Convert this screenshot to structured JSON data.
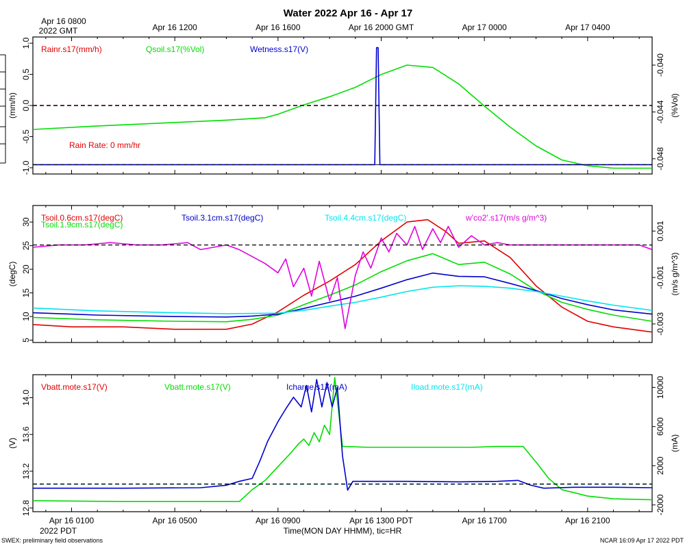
{
  "colors": {
    "red": "#e00000",
    "green": "#00dd00",
    "blue": "#0000cc",
    "cyan": "#00e5ee",
    "magenta": "#e000e0",
    "black": "#000000"
  },
  "title": "Water 2022 Apr 16 - Apr 17",
  "top_axis": {
    "first_label_line1": "Apr 16 0800",
    "first_label_line2": "2022 GMT",
    "labels": [
      "Apr 16 1200",
      "Apr 16 1600",
      "Apr 16 2000 GMT",
      "Apr 17 0000",
      "Apr 17 0400"
    ]
  },
  "bottom_axis": {
    "labels": [
      "Apr 16 0100",
      "Apr 16 0500",
      "Apr 16 0900",
      "Apr 16 1300 PDT",
      "Apr 16 1700",
      "Apr 16 2100"
    ],
    "year_label": "2022 PDT",
    "xlabel": "Time(MON DAY HHMM), tic=HR"
  },
  "footer": {
    "left": "SWEX: preliminary field observations",
    "right": "NCAR 16:09 Apr 17 2022 PDT"
  },
  "chart_data": [
    {
      "type": "line",
      "panel": "water",
      "x_unit": "hours since Apr 16 0000 PDT",
      "xlim": [
        -0.5,
        23.5
      ],
      "ylim": [
        -1.1,
        1.1
      ],
      "ylabel": "(mm/h)",
      "yticks": [
        "-1.0",
        "-0.5",
        "0.0",
        "0.5",
        "1.0"
      ],
      "y2lim": [
        -0.0493,
        -0.0376
      ],
      "y2label": "(%Vol)",
      "y2ticks": [
        "-0.048",
        "-0.044",
        "-0.040"
      ],
      "annotation": "Rain Rate: 0 mm/hr",
      "legend": [
        "Rainr.s17(mm/h)",
        "Qsoil.s17(%Vol)",
        "Wetness.s17(V)"
      ],
      "series": [
        {
          "name": "Rainr.s17(mm/h)",
          "axis": "left",
          "color": "red",
          "dashed": true,
          "x": [
            -0.5,
            23.5
          ],
          "y": [
            0,
            0
          ]
        },
        {
          "name": "Qsoil.s17(%Vol)",
          "axis": "right",
          "color": "green",
          "x": [
            -0.5,
            2,
            5,
            7,
            8.5,
            9,
            10,
            11,
            12,
            13,
            14,
            15,
            16,
            17,
            18,
            19,
            20,
            21,
            22,
            23.5
          ],
          "y": [
            -0.0455,
            -0.0452,
            -0.0449,
            -0.0447,
            -0.0445,
            -0.0442,
            -0.0434,
            -0.0427,
            -0.0419,
            -0.0408,
            -0.04,
            -0.0402,
            -0.0416,
            -0.0435,
            -0.0453,
            -0.0469,
            -0.0481,
            -0.0486,
            -0.0488,
            -0.0488
          ]
        },
        {
          "name": "Wetness.s17(V)",
          "axis": "left",
          "color": "blue",
          "x": [
            -0.5,
            12.75,
            12.82,
            12.88,
            12.95,
            23.5
          ],
          "y": [
            -0.95,
            -0.95,
            0.93,
            0.93,
            -0.95,
            -0.95
          ]
        }
      ]
    },
    {
      "type": "line",
      "panel": "soil-temperature",
      "x_unit": "hours since Apr 16 0000 PDT",
      "xlim": [
        -0.5,
        23.5
      ],
      "ylim": [
        4.5,
        33.5
      ],
      "ylabel": "(degC)",
      "yticks": [
        "5",
        "10",
        "15",
        "20",
        "25",
        "30"
      ],
      "y2lim": [
        -0.0038,
        0.0021
      ],
      "y2label": "(m/s g/m^3)",
      "y2ticks": [
        "-0.003",
        "-0.001",
        "0.001"
      ],
      "legend": [
        "Tsoil.0.6cm.s17(degC)",
        "Tsoil.1.9cm.s17(degC)",
        "Tsoil.3.1cm.s17(degC)",
        "Tsoil.4.4cm.s17(degC)",
        "w'co2'.s17(m/s g/m^3)"
      ],
      "series": [
        {
          "name": "Tsoil.0.6cm.s17(degC)",
          "axis": "left",
          "color": "red",
          "x": [
            -0.5,
            1,
            3,
            5,
            7,
            8,
            9,
            10,
            11,
            12,
            13,
            14,
            14.8,
            15.5,
            16,
            17,
            18,
            19,
            20,
            21,
            22,
            23.5
          ],
          "y": [
            8.3,
            7.8,
            7.8,
            7.3,
            7.3,
            8.4,
            11.0,
            14.5,
            17.5,
            21.0,
            26.0,
            30.0,
            30.5,
            28.0,
            25.5,
            26.0,
            22.5,
            16.5,
            12.0,
            9.0,
            7.8,
            6.7
          ]
        },
        {
          "name": "Tsoil.1.9cm.s17(degC)",
          "axis": "left",
          "color": "green",
          "x": [
            -0.5,
            2,
            5,
            7,
            8,
            9,
            10,
            11,
            12,
            13,
            14,
            15,
            16,
            17,
            18,
            19,
            20,
            21,
            22,
            23.5
          ],
          "y": [
            9.8,
            9.3,
            9.0,
            8.9,
            9.4,
            10.3,
            12.5,
            14.5,
            16.7,
            19.5,
            21.8,
            23.3,
            21.0,
            21.5,
            19.0,
            15.5,
            13.0,
            11.5,
            10.3,
            9.0
          ]
        },
        {
          "name": "Tsoil.3.1cm.s17(degC)",
          "axis": "left",
          "color": "blue",
          "x": [
            -0.5,
            2,
            5,
            7,
            8,
            9,
            10,
            11,
            12,
            13,
            14,
            15,
            16,
            17,
            18,
            19,
            20,
            21,
            22,
            23.5
          ],
          "y": [
            10.8,
            10.3,
            10.0,
            9.9,
            10.1,
            10.5,
            11.7,
            13.0,
            14.3,
            16.0,
            17.8,
            19.2,
            18.5,
            18.4,
            17.0,
            15.5,
            13.8,
            12.5,
            11.4,
            10.5
          ]
        },
        {
          "name": "Tsoil.4.4cm.s17(degC)",
          "axis": "left",
          "color": "cyan",
          "x": [
            -0.5,
            2,
            5,
            7,
            9,
            10,
            11,
            12,
            13,
            14,
            15,
            16,
            17,
            18,
            19,
            20,
            21,
            22,
            23.5
          ],
          "y": [
            11.8,
            11.2,
            10.8,
            10.6,
            10.7,
            11.3,
            12.2,
            13.0,
            14.1,
            15.3,
            16.2,
            16.5,
            16.4,
            16.0,
            15.3,
            14.3,
            13.3,
            12.4,
            11.3
          ]
        },
        {
          "name": "w'co2'.s17(m/s g/m^3)",
          "axis": "right",
          "color": "magenta",
          "x": [
            -0.5,
            0.5,
            1.5,
            2.5,
            3.5,
            4.5,
            5.5,
            6.0,
            6.5,
            7.0,
            7.5,
            8.0,
            8.5,
            9.0,
            9.3,
            9.6,
            10.0,
            10.3,
            10.6,
            11.0,
            11.3,
            11.6,
            12.0,
            12.3,
            12.6,
            13.0,
            13.3,
            13.6,
            14.0,
            14.3,
            14.6,
            15.0,
            15.3,
            15.6,
            16.0,
            16.5,
            17.0,
            17.5,
            18.0,
            19.0,
            20.0,
            21.0,
            22.0,
            23.0,
            23.5
          ],
          "y": [
            0.0003,
            0.0004,
            0.0004,
            0.0005,
            0.0004,
            0.0004,
            0.0005,
            0.0002,
            0.0003,
            0.0004,
            0.0002,
            -0.0001,
            -0.0004,
            -0.0008,
            -0.0002,
            -0.0014,
            -0.0006,
            -0.0018,
            -0.0003,
            -0.002,
            -0.001,
            -0.0032,
            -0.0009,
            0.0001,
            -0.0006,
            0.0007,
            0.0001,
            0.0009,
            0.0004,
            0.0012,
            0.0002,
            0.0011,
            0.0005,
            0.0012,
            0.0003,
            0.0008,
            0.0004,
            0.0005,
            0.0004,
            0.0004,
            0.0004,
            0.0004,
            0.0004,
            0.0004,
            0.0002
          ]
        }
      ]
    },
    {
      "type": "line",
      "panel": "battery",
      "x_unit": "hours since Apr 16 0000 PDT",
      "xlim": [
        -0.5,
        23.5
      ],
      "ylim": [
        12.76,
        14.25
      ],
      "ylabel": "(V)",
      "yticks": [
        "12.8",
        "13.2",
        "13.6",
        "14.0"
      ],
      "y2lim": [
        -2700,
        11300
      ],
      "y2label": "(mA)",
      "y2ticks": [
        "-2000",
        "2000",
        "6000",
        "10000"
      ],
      "legend": [
        "Vbatt.mote.s17(V)",
        "Vbatt.mote.s17(V)",
        "Icharge.s17(mA)",
        "Iload.mote.s17(mA)"
      ],
      "series": [
        {
          "name": "Vbatt.mote.s17(V)",
          "axis": "left",
          "color": "red",
          "dashed": true,
          "x": [
            -0.5,
            23.5
          ],
          "y": [
            13.06,
            13.06
          ]
        },
        {
          "name": "Iload.mote.s17(mA)",
          "axis": "left",
          "color": "cyan",
          "dashed": true,
          "x": [
            -0.5,
            23.5
          ],
          "y": [
            13.06,
            13.06
          ]
        },
        {
          "name": "Vbatt.mote.s17(V)",
          "axis": "left",
          "color": "green",
          "x": [
            -0.5,
            3,
            6,
            7.5,
            8.0,
            8.5,
            9.0,
            9.5,
            9.8,
            10.0,
            10.2,
            10.4,
            10.6,
            10.8,
            11.0,
            11.2,
            11.5,
            12.5,
            13.5,
            14.5,
            15.5,
            16.5,
            17.5,
            18.5,
            19.0,
            19.5,
            20.0,
            21.0,
            22.0,
            23.5
          ],
          "y": [
            12.88,
            12.87,
            12.87,
            12.87,
            13.0,
            13.1,
            13.25,
            13.4,
            13.5,
            13.55,
            13.48,
            13.62,
            13.52,
            13.7,
            13.6,
            14.22,
            13.47,
            13.46,
            13.46,
            13.46,
            13.46,
            13.46,
            13.47,
            13.47,
            13.3,
            13.12,
            13.0,
            12.93,
            12.9,
            12.89
          ]
        },
        {
          "name": "Icharge.s17(mA)",
          "axis": "right",
          "color": "blue",
          "x": [
            -0.5,
            3,
            6,
            7.0,
            7.5,
            8.0,
            8.3,
            8.6,
            9.0,
            9.3,
            9.6,
            9.9,
            10.1,
            10.3,
            10.5,
            10.7,
            10.9,
            11.1,
            11.3,
            11.5,
            11.7,
            11.9,
            12.2,
            14,
            16,
            17.5,
            18.3,
            18.8,
            19.3,
            20.5,
            22,
            23.5
          ],
          "y": [
            -300,
            -300,
            -250,
            0,
            400,
            700,
            2500,
            4500,
            6500,
            7800,
            9000,
            8000,
            10200,
            7500,
            10800,
            8000,
            10500,
            8000,
            10000,
            3000,
            -500,
            400,
            400,
            400,
            350,
            400,
            500,
            0,
            -300,
            -200,
            -200,
            -250
          ]
        }
      ]
    }
  ]
}
